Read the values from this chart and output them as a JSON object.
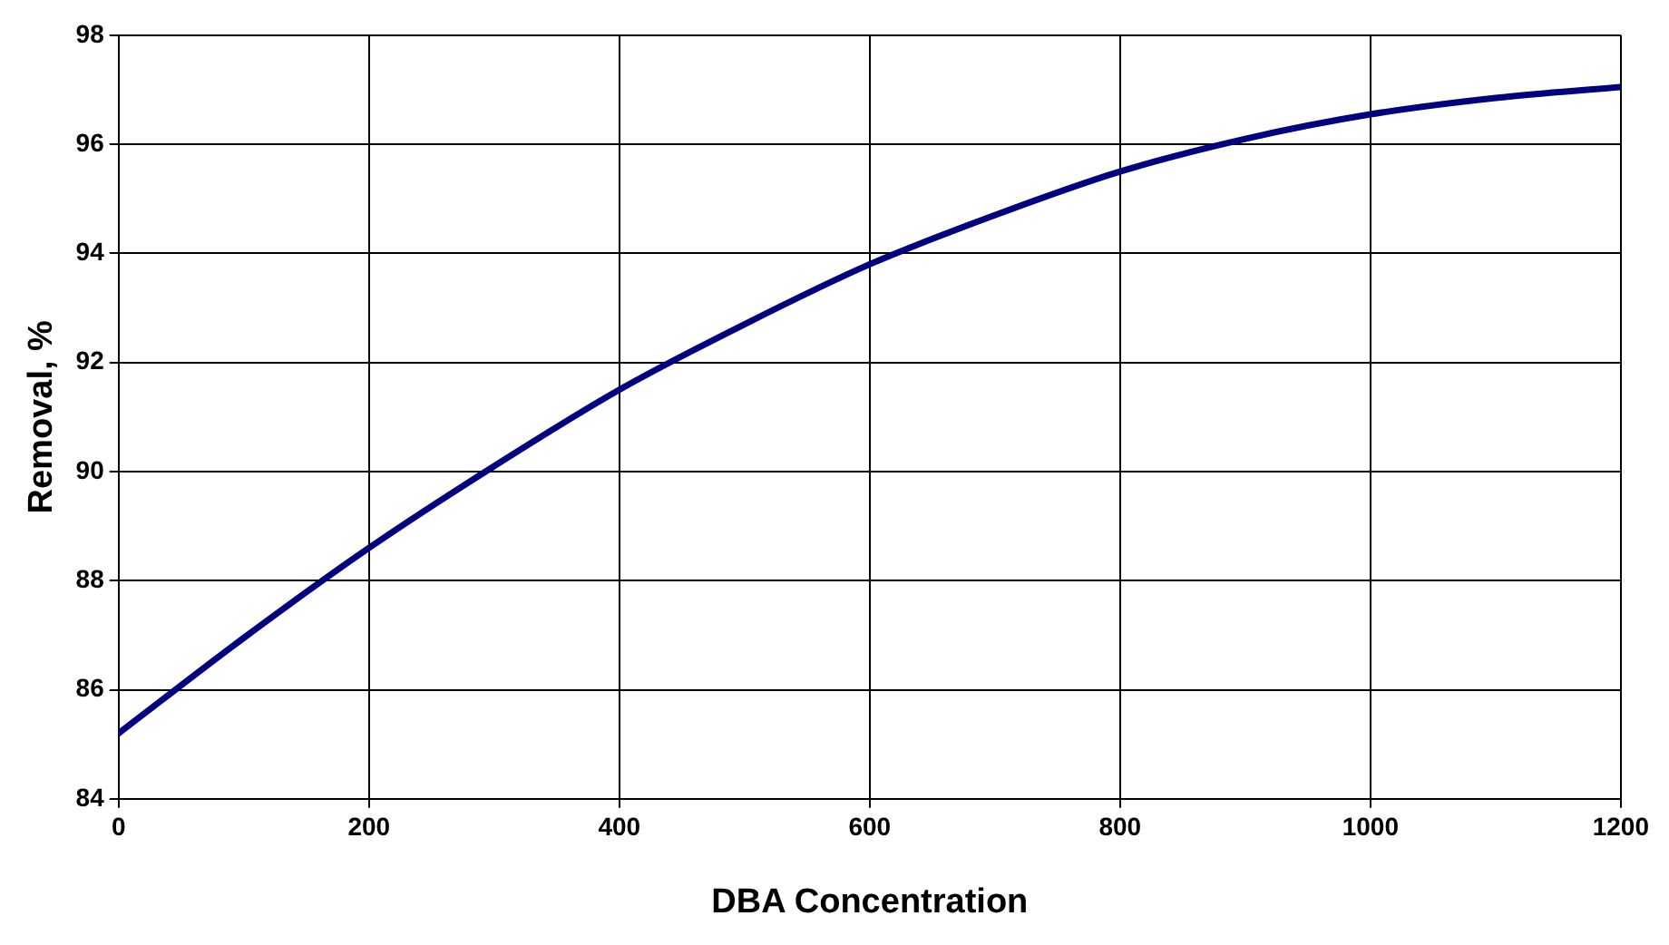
{
  "chart_data": {
    "type": "line",
    "xlabel": "DBA Concentration",
    "ylabel": "Removal, %",
    "series": [
      {
        "color": "#000080",
        "x": [
          0,
          100,
          200,
          300,
          400,
          500,
          600,
          700,
          800,
          900,
          1000,
          1100,
          1200
        ],
        "values": [
          85.2,
          86.95,
          88.6,
          90.1,
          91.5,
          92.7,
          93.8,
          94.7,
          95.5,
          96.1,
          96.55,
          96.85,
          97.05
        ]
      }
    ],
    "xlim": [
      0,
      1200
    ],
    "xticks": [
      0,
      200,
      400,
      600,
      800,
      1000,
      1200
    ],
    "ylim": [
      84,
      98
    ],
    "yticks": [
      84,
      86,
      88,
      90,
      92,
      94,
      96,
      98
    ],
    "grid": true,
    "legend": false,
    "marker": "none",
    "line_style": "solid"
  }
}
